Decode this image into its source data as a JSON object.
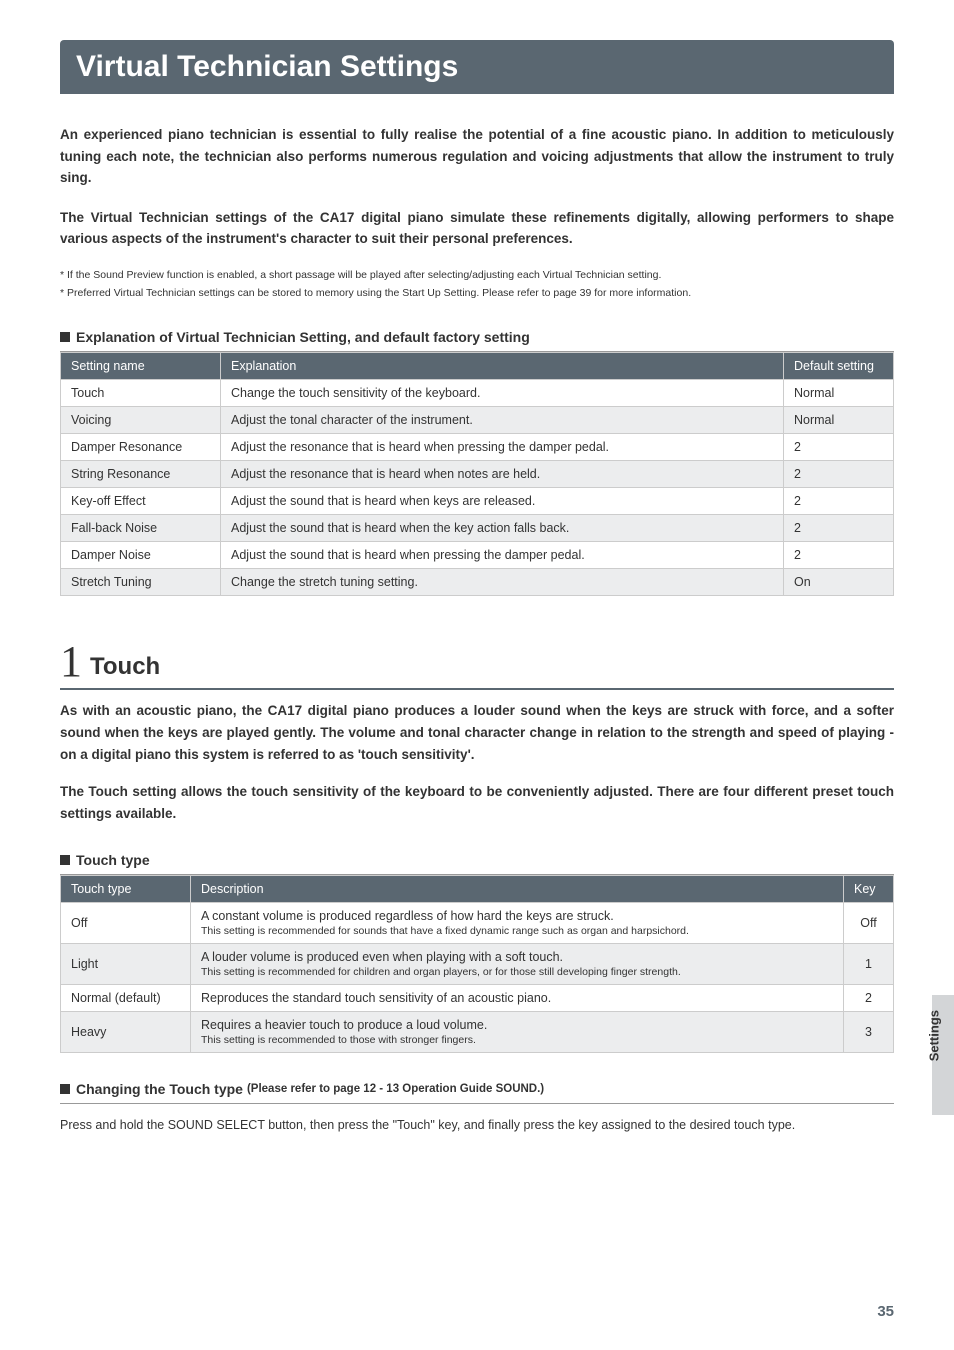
{
  "page_title": "Virtual Technician Settings",
  "intro_p1": "An experienced piano technician is essential to fully realise the potential of a fine acoustic piano. In addition to meticulously tuning each note, the technician also performs numerous regulation and voicing adjustments that allow the instrument to truly sing.",
  "intro_p2": "The Virtual Technician settings of the CA17 digital piano simulate these refinements digitally, allowing performers to shape various aspects of the instrument's character to suit their personal preferences.",
  "note1": "* If the Sound Preview function is enabled, a short passage will be played after selecting/adjusting each Virtual Technician setting.",
  "note2": "* Preferred Virtual Technician settings can be stored to memory using the Start Up Setting.   Please refer to page 39 for more information.",
  "explanation_heading": "Explanation of Virtual Technician Setting, and default factory setting",
  "table1": {
    "headers": {
      "name": "Setting name",
      "expl": "Explanation",
      "def": "Default setting"
    },
    "rows": [
      {
        "name": "Touch",
        "expl": "Change the touch sensitivity of the keyboard.",
        "def": "Normal"
      },
      {
        "name": "Voicing",
        "expl": "Adjust the tonal character of the instrument.",
        "def": "Normal"
      },
      {
        "name": "Damper Resonance",
        "expl": "Adjust the resonance that is heard when pressing the damper pedal.",
        "def": "2"
      },
      {
        "name": "String Resonance",
        "expl": "Adjust the resonance that is heard when notes are held.",
        "def": "2"
      },
      {
        "name": "Key-off Effect",
        "expl": "Adjust the sound that is heard when keys are released.",
        "def": "2"
      },
      {
        "name": "Fall-back Noise",
        "expl": "Adjust the sound that is heard when the key action falls back.",
        "def": "2"
      },
      {
        "name": "Damper Noise",
        "expl": "Adjust the sound that is heard when pressing the damper pedal.",
        "def": "2"
      },
      {
        "name": "Stretch Tuning",
        "expl": "Change the stretch tuning setting.",
        "def": "On"
      }
    ]
  },
  "section": {
    "num": "1",
    "name": "Touch"
  },
  "touch_p1": "As with an acoustic piano, the CA17 digital piano produces a louder sound when the keys are struck with force, and a softer sound when the keys are played gently.  The volume and tonal character change in relation to the strength and speed of playing - on a digital piano this system is referred to as 'touch sensitivity'.",
  "touch_p2": "The Touch setting allows the touch sensitivity of the keyboard to be conveniently adjusted.  There are four different preset touch settings available.",
  "touch_type_heading": "Touch type",
  "table2": {
    "headers": {
      "type": "Touch type",
      "desc": "Description",
      "key": "Key"
    },
    "rows": [
      {
        "type": "Off",
        "main": "A constant volume is produced regardless of how hard the keys are struck.",
        "sub": "This setting is recommended for sounds that have a fixed dynamic range such as organ and harpsichord.",
        "key": "Off"
      },
      {
        "type": "Light",
        "main": "A louder volume is produced even when playing with a soft touch.",
        "sub": "This setting is recommended for children and organ players, or for those still developing finger strength.",
        "key": "1"
      },
      {
        "type": "Normal (default)",
        "main": "Reproduces the standard touch sensitivity of an acoustic piano.",
        "sub": "",
        "key": "2"
      },
      {
        "type": "Heavy",
        "main": "Requires a heavier touch to produce a loud volume.",
        "sub": "This setting is recommended to those with stronger fingers.",
        "key": "3"
      }
    ]
  },
  "changing_heading": "Changing the Touch type",
  "changing_sub": "(Please refer to page 12 - 13 Operation Guide SOUND.)",
  "changing_body": "Press and hold the SOUND SELECT button, then press the \"Touch\" key, and finally press the key assigned to the desired touch type.",
  "side_label": "Settings",
  "page_number": "35"
}
